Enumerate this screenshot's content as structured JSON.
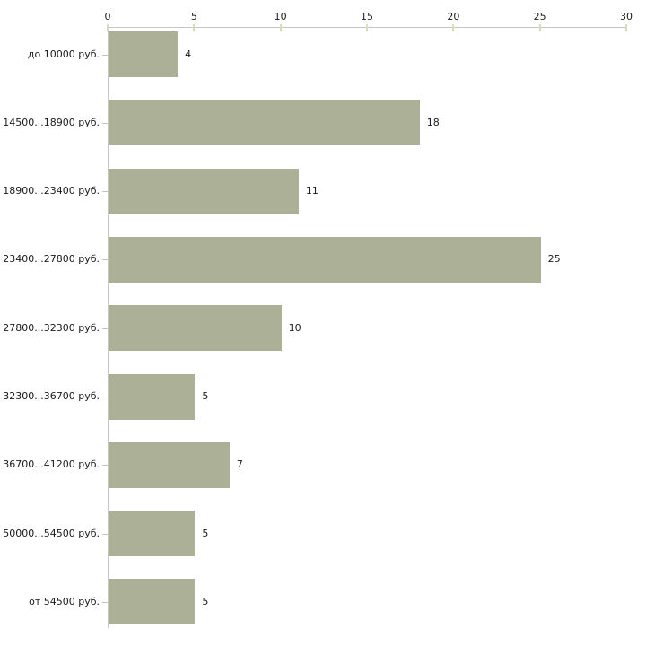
{
  "chart_data": {
    "type": "bar",
    "orientation": "horizontal",
    "title": "",
    "xlabel": "",
    "ylabel": "",
    "axis_position": "top",
    "grid": false,
    "legend": false,
    "categories": [
      "до 10000 руб.",
      "14500...18900 руб.",
      "18900...23400 руб.",
      "23400...27800 руб.",
      "27800...32300 руб.",
      "32300...36700 руб.",
      "36700...41200 руб.",
      "50000...54500 руб.",
      "от 54500 руб."
    ],
    "values": [
      4,
      18,
      11,
      25,
      10,
      5,
      7,
      5,
      5
    ],
    "x_ticks": [
      0,
      5,
      10,
      15,
      20,
      25,
      30
    ],
    "xlim": [
      0,
      30
    ]
  },
  "colors": {
    "background": "#ffffff",
    "bar_fill": "#abb096",
    "axis_line": "#c6c6c6",
    "axis_tick": "#d9ddb5",
    "category_tick": "#c3c3b8",
    "text": "#1a1a1a"
  }
}
